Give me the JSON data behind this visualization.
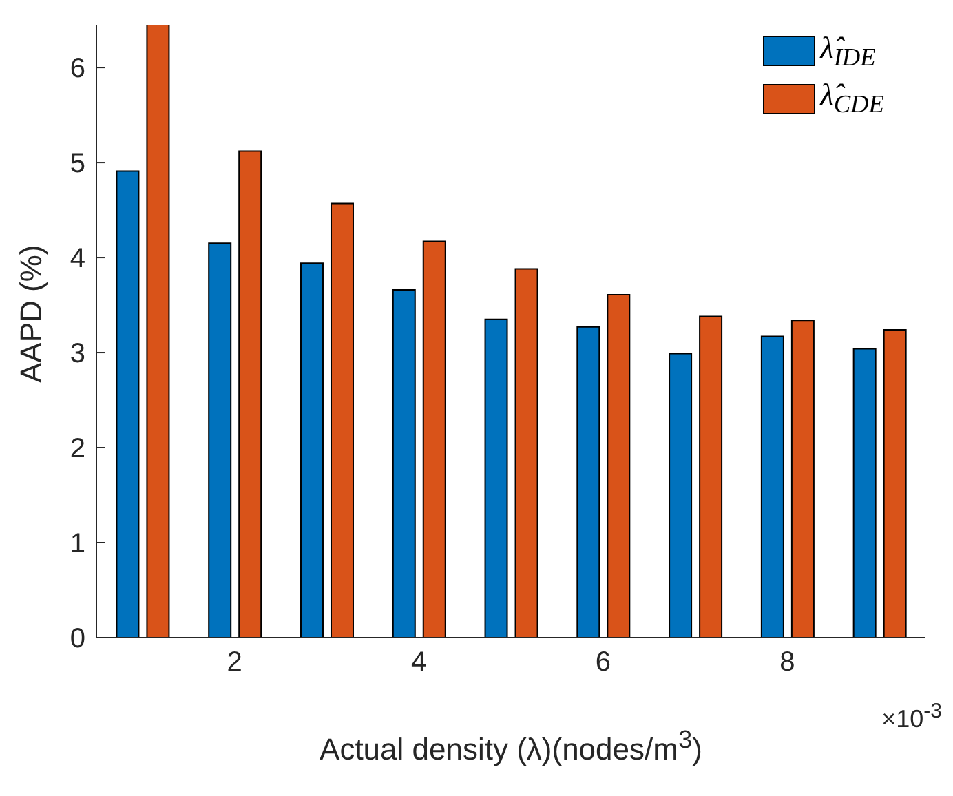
{
  "chart_data": {
    "type": "bar",
    "xlabel": "Actual density (λ)(nodes/m$^{3}$)",
    "ylabel": "AAPD (%)",
    "categories": [
      null,
      "2",
      null,
      "4",
      null,
      "6",
      null,
      "8",
      null
    ],
    "series": [
      {
        "name": "λ̂$_{IDE}$",
        "color": "#0072bd",
        "values": [
          4.91,
          4.15,
          3.94,
          3.66,
          3.35,
          3.27,
          2.99,
          3.17,
          3.04
        ]
      },
      {
        "name": "λ̂$_{CDE}$",
        "color": "#d95319",
        "values": [
          6.45,
          5.12,
          4.57,
          4.17,
          3.88,
          3.61,
          3.38,
          3.34,
          3.24
        ]
      }
    ],
    "ylim": [
      0,
      6.45
    ],
    "yticks": [
      0,
      1,
      2,
      3,
      4,
      5,
      6
    ],
    "grid": false,
    "legend": "top right",
    "annotations": [
      "×10$^{-3}$"
    ]
  }
}
